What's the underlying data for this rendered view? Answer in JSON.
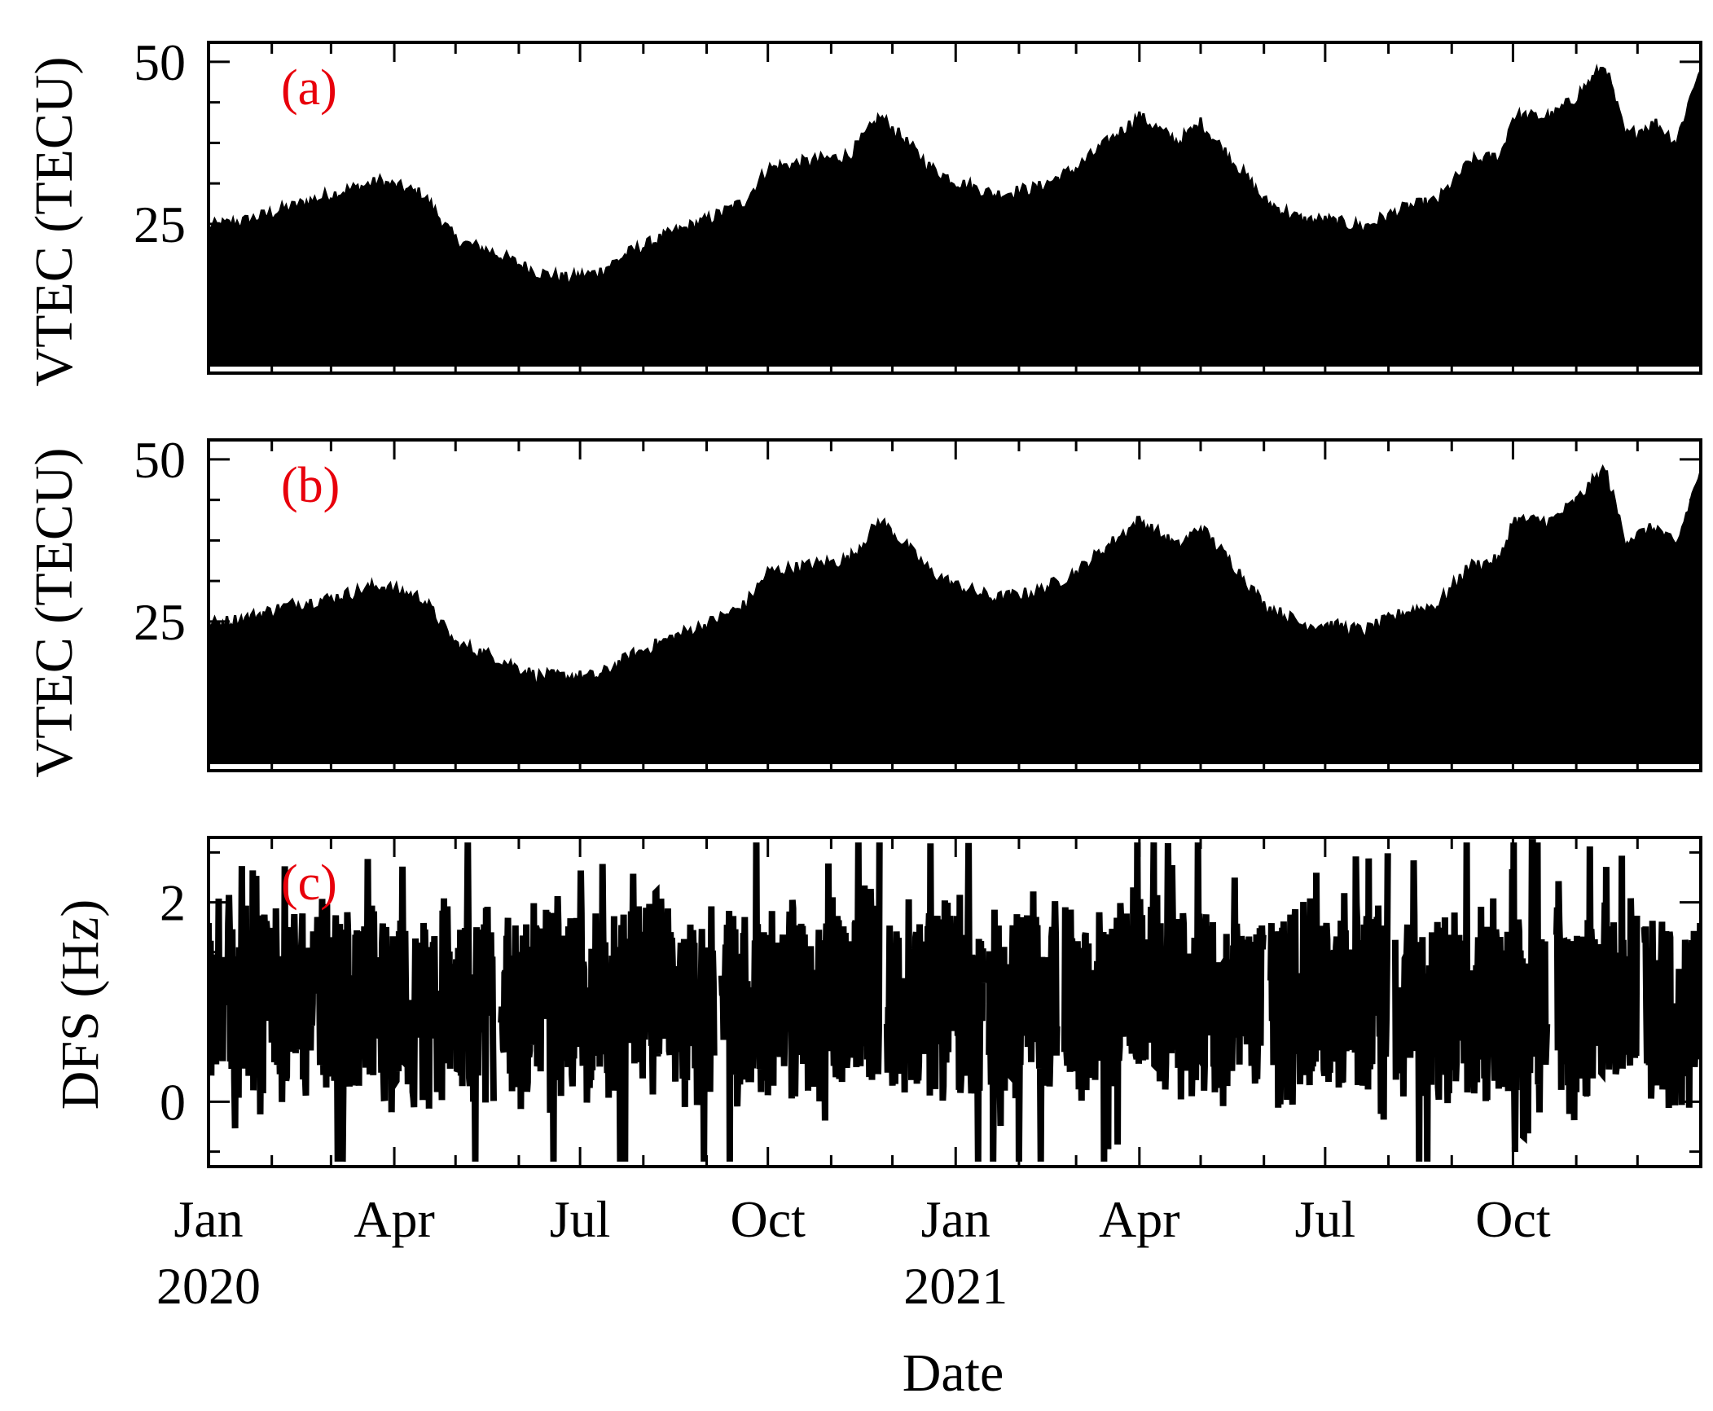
{
  "colors": {
    "data": "#000000",
    "panel_label": "#e8000b",
    "frame": "#000000"
  },
  "shared_x_axis": {
    "label": "Date",
    "ticks": [
      {
        "date": "2020-01-01",
        "label": "Jan",
        "sublabel": "2020"
      },
      {
        "date": "2020-04-01",
        "label": "Apr",
        "sublabel": ""
      },
      {
        "date": "2020-07-01",
        "label": "Jul",
        "sublabel": ""
      },
      {
        "date": "2020-10-01",
        "label": "Oct",
        "sublabel": ""
      },
      {
        "date": "2021-01-01",
        "label": "Jan",
        "sublabel": "2021"
      },
      {
        "date": "2021-04-01",
        "label": "Apr",
        "sublabel": ""
      },
      {
        "date": "2021-07-01",
        "label": "Jul",
        "sublabel": ""
      },
      {
        "date": "2021-10-01",
        "label": "Oct",
        "sublabel": ""
      }
    ],
    "range": [
      "2020-01-01",
      "2021-12-31"
    ]
  },
  "chart_data": [
    {
      "type": "area",
      "panel_label": "(a)",
      "ylabel": "VTEC (TECU)",
      "ylim": [
        2,
        53
      ],
      "yticks": [
        25,
        50
      ],
      "baseline": 3.5,
      "envelope": {
        "x": [
          "2020-01-01",
          "2020-01-20",
          "2020-02-10",
          "2020-03-01",
          "2020-03-25",
          "2020-04-15",
          "2020-05-01",
          "2020-05-20",
          "2020-06-10",
          "2020-06-25",
          "2020-07-10",
          "2020-07-25",
          "2020-08-15",
          "2020-09-01",
          "2020-09-20",
          "2020-10-01",
          "2020-10-20",
          "2020-11-10",
          "2020-11-25",
          "2020-12-05",
          "2020-12-20",
          "2021-01-01",
          "2021-01-20",
          "2021-02-10",
          "2021-03-01",
          "2021-03-20",
          "2021-04-01",
          "2021-04-20",
          "2021-05-01",
          "2021-05-20",
          "2021-06-01",
          "2021-06-20",
          "2021-07-01",
          "2021-07-20",
          "2021-08-10",
          "2021-08-25",
          "2021-09-10",
          "2021-09-25",
          "2021-10-01",
          "2021-10-20",
          "2021-11-01",
          "2021-11-15",
          "2021-11-25",
          "2021-12-10",
          "2021-12-20",
          "2021-12-31"
        ],
        "y": [
          24,
          25,
          27,
          29,
          31,
          29,
          22,
          20,
          17,
          16,
          17,
          20,
          23,
          25,
          28,
          33,
          34,
          35,
          41,
          38,
          33,
          31,
          29,
          30,
          33,
          38,
          41,
          37,
          40,
          33,
          28,
          25,
          25,
          24,
          27,
          28,
          34,
          35,
          41,
          41,
          44,
          49,
          38,
          40,
          37,
          48
        ]
      },
      "text": "(a)"
    },
    {
      "type": "area",
      "panel_label": "(b)",
      "ylabel": "VTEC (TECU)",
      "ylim": [
        2,
        53
      ],
      "yticks": [
        25,
        50
      ],
      "baseline": 3.5,
      "envelope": {
        "x": [
          "2020-01-01",
          "2020-01-20",
          "2020-02-10",
          "2020-03-01",
          "2020-03-25",
          "2020-04-15",
          "2020-05-01",
          "2020-05-20",
          "2020-06-10",
          "2020-06-25",
          "2020-07-10",
          "2020-07-25",
          "2020-08-15",
          "2020-09-01",
          "2020-09-20",
          "2020-10-01",
          "2020-10-20",
          "2020-11-10",
          "2020-11-25",
          "2020-12-05",
          "2020-12-20",
          "2021-01-01",
          "2021-01-20",
          "2021-02-10",
          "2021-03-01",
          "2021-03-20",
          "2021-04-01",
          "2021-04-20",
          "2021-05-01",
          "2021-05-20",
          "2021-06-01",
          "2021-06-20",
          "2021-07-01",
          "2021-07-20",
          "2021-08-10",
          "2021-08-25",
          "2021-09-10",
          "2021-09-25",
          "2021-10-01",
          "2021-10-20",
          "2021-11-01",
          "2021-11-15",
          "2021-11-25",
          "2021-12-10",
          "2021-12-20",
          "2021-12-31"
        ],
        "y": [
          24,
          25,
          27,
          28,
          30,
          28,
          21,
          19,
          16,
          16,
          16,
          19,
          22,
          24,
          27,
          32,
          33,
          34,
          40,
          37,
          32,
          30,
          28,
          29,
          32,
          37,
          40,
          36,
          39,
          32,
          27,
          24,
          24,
          23,
          26,
          27,
          33,
          34,
          40,
          40,
          43,
          48,
          37,
          39,
          36,
          47
        ]
      },
      "text": "(b)"
    },
    {
      "type": "line",
      "panel_label": "(c)",
      "ylabel": "DFS (Hz)",
      "ylim": [
        -0.65,
        2.65
      ],
      "yticks": [
        0,
        2
      ],
      "center": {
        "x": [
          "2020-01-01",
          "2020-02-15",
          "2020-04-01",
          "2020-05-15",
          "2020-07-01",
          "2020-08-15",
          "2020-10-01",
          "2020-11-15",
          "2021-01-01",
          "2021-02-15",
          "2021-04-01",
          "2021-05-15",
          "2021-07-01",
          "2021-08-15",
          "2021-10-01",
          "2021-11-15",
          "2021-12-31"
        ],
        "y": [
          1.1,
          1.0,
          0.9,
          1.0,
          1.0,
          1.0,
          1.0,
          1.1,
          1.0,
          1.0,
          1.1,
          1.0,
          1.0,
          1.0,
          1.0,
          1.1,
          1.0
        ]
      },
      "gaps": [
        [
          "2020-05-20",
          "2020-05-23"
        ],
        [
          "2020-09-05",
          "2020-09-08"
        ],
        [
          "2020-11-25",
          "2020-11-28"
        ],
        [
          "2021-01-15",
          "2021-01-17"
        ],
        [
          "2021-02-20",
          "2021-02-23"
        ],
        [
          "2021-06-01",
          "2021-06-04"
        ],
        [
          "2021-08-01",
          "2021-08-04"
        ],
        [
          "2021-10-18",
          "2021-10-22"
        ],
        [
          "2021-12-01",
          "2021-12-04"
        ]
      ],
      "text": "(c)"
    }
  ]
}
